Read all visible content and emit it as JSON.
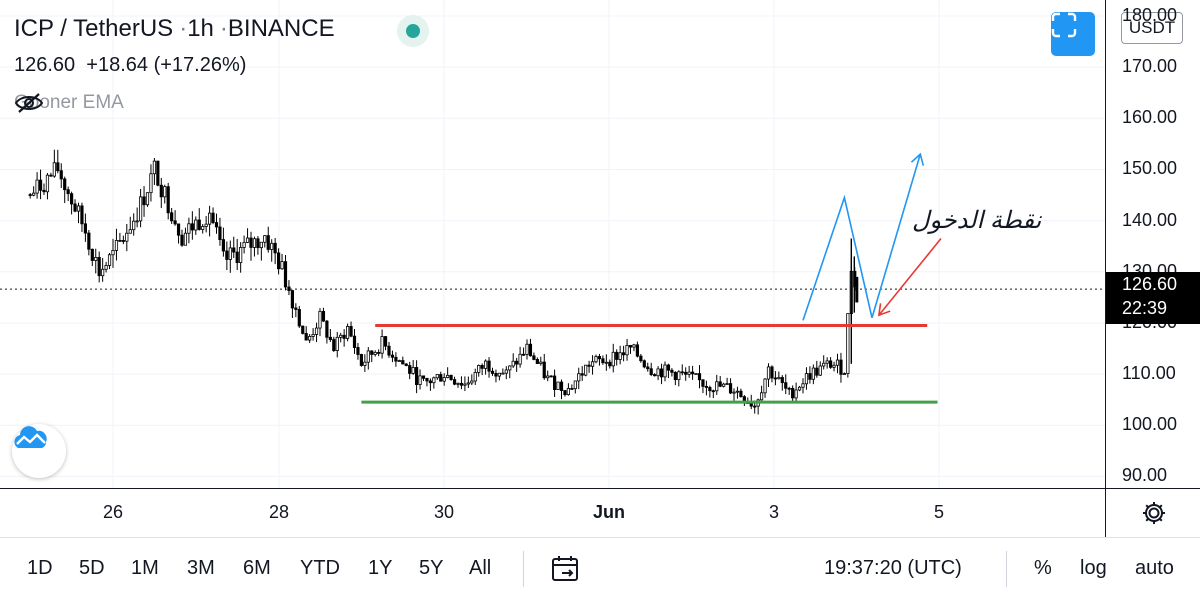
{
  "legend": {
    "symbol": "ICP / TetherUS",
    "interval": "1h",
    "exchange": "BINANCE",
    "last": "126.60",
    "change": "+18.64",
    "change_pct": "(+17.26%)",
    "indicator": "Gooner EMA",
    "indicator_hidden_icon": "eye-off-icon"
  },
  "colors": {
    "candle": "#000000",
    "resistance": "#e53935",
    "support": "#43a047",
    "projection": "#2196f3",
    "entry_arrow": "#e53935",
    "accent": "#2196f3"
  },
  "price_axis": {
    "currency": "USDT",
    "ticks": [
      "180.00",
      "170.00",
      "160.00",
      "150.00",
      "140.00",
      "130.00",
      "120.00",
      "110.00",
      "100.00",
      "90.00"
    ],
    "last_price_label": "126.60",
    "countdown": "22:39"
  },
  "chart_data": {
    "type": "candlestick",
    "symbol": "ICP / TetherUS",
    "interval": "1h",
    "ylim": [
      86,
      181
    ],
    "x_ticks": [
      "26",
      "28",
      "30",
      "Jun",
      "3",
      "5"
    ],
    "last_price": 126.6,
    "path_keypoints": [
      {
        "date": "05-25 00:00",
        "price": 145
      },
      {
        "date": "05-25 08:00",
        "price": 150
      },
      {
        "date": "05-25 16:00",
        "price": 138
      },
      {
        "date": "05-25 20:00",
        "price": 130
      },
      {
        "date": "05-26 00:00",
        "price": 133
      },
      {
        "date": "05-26 08:00",
        "price": 143
      },
      {
        "date": "05-26 12:00",
        "price": 150
      },
      {
        "date": "05-26 20:00",
        "price": 137
      },
      {
        "date": "05-27 04:00",
        "price": 142
      },
      {
        "date": "05-27 08:00",
        "price": 132
      },
      {
        "date": "05-27 20:00",
        "price": 137
      },
      {
        "date": "05-28 00:00",
        "price": 132
      },
      {
        "date": "05-28 04:00",
        "price": 125
      },
      {
        "date": "05-28 08:00",
        "price": 116
      },
      {
        "date": "05-28 12:00",
        "price": 121
      },
      {
        "date": "05-28 16:00",
        "price": 115
      },
      {
        "date": "05-28 20:00",
        "price": 119
      },
      {
        "date": "05-29 00:00",
        "price": 112
      },
      {
        "date": "05-29 06:00",
        "price": 116
      },
      {
        "date": "05-29 12:00",
        "price": 112
      },
      {
        "date": "05-29 18:00",
        "price": 108
      },
      {
        "date": "05-30 00:00",
        "price": 110
      },
      {
        "date": "05-30 06:00",
        "price": 108
      },
      {
        "date": "05-30 12:00",
        "price": 112
      },
      {
        "date": "05-30 18:00",
        "price": 110
      },
      {
        "date": "05-31 00:00",
        "price": 115
      },
      {
        "date": "05-31 06:00",
        "price": 109
      },
      {
        "date": "05-31 12:00",
        "price": 107
      },
      {
        "date": "05-31 18:00",
        "price": 112
      },
      {
        "date": "06-01 00:00",
        "price": 113
      },
      {
        "date": "06-01 06:00",
        "price": 115
      },
      {
        "date": "06-01 12:00",
        "price": 111
      },
      {
        "date": "06-01 20:00",
        "price": 110
      },
      {
        "date": "06-02 04:00",
        "price": 108
      },
      {
        "date": "06-02 12:00",
        "price": 107
      },
      {
        "date": "06-02 18:00",
        "price": 104
      },
      {
        "date": "06-02 22:00",
        "price": 111
      },
      {
        "date": "06-03 04:00",
        "price": 106
      },
      {
        "date": "06-03 10:00",
        "price": 110
      },
      {
        "date": "06-03 16:00",
        "price": 112
      },
      {
        "date": "06-03 20:00",
        "price": 111
      },
      {
        "date": "06-03 22:00",
        "price": 131
      },
      {
        "date": "06-04 00:00",
        "price": 126.6
      }
    ],
    "annotations": {
      "resistance": {
        "price": 119.5,
        "from": "05-29 04:00",
        "to": "06-04 20:00"
      },
      "support": {
        "price": 104.5,
        "from": "05-29 00:00",
        "to": "06-04 23:00"
      },
      "projection_spike": [
        {
          "date": "06-03 08:00",
          "price": 120.5
        },
        {
          "date": "06-03 20:00",
          "price": 144.5
        },
        {
          "date": "06-04 04:00",
          "price": 121
        }
      ],
      "projection_target": [
        {
          "date": "06-04 04:00",
          "price": 121
        },
        {
          "date": "06-04 18:00",
          "price": 153
        }
      ],
      "entry_arrow": {
        "from": {
          "date": "06-05 00:00",
          "price": 136.5
        },
        "to": {
          "date": "06-04 06:00",
          "price": 121.5
        }
      },
      "entry_label": "نقطة الدخول"
    }
  },
  "toolbar": {
    "ranges": [
      "1D",
      "5D",
      "1M",
      "3M",
      "6M",
      "YTD",
      "1Y",
      "5Y",
      "All"
    ],
    "date_range_icon": "calendar-range-icon",
    "clock": "19:37:20 (UTC)",
    "percent": "%",
    "log": "log",
    "auto": "auto"
  }
}
